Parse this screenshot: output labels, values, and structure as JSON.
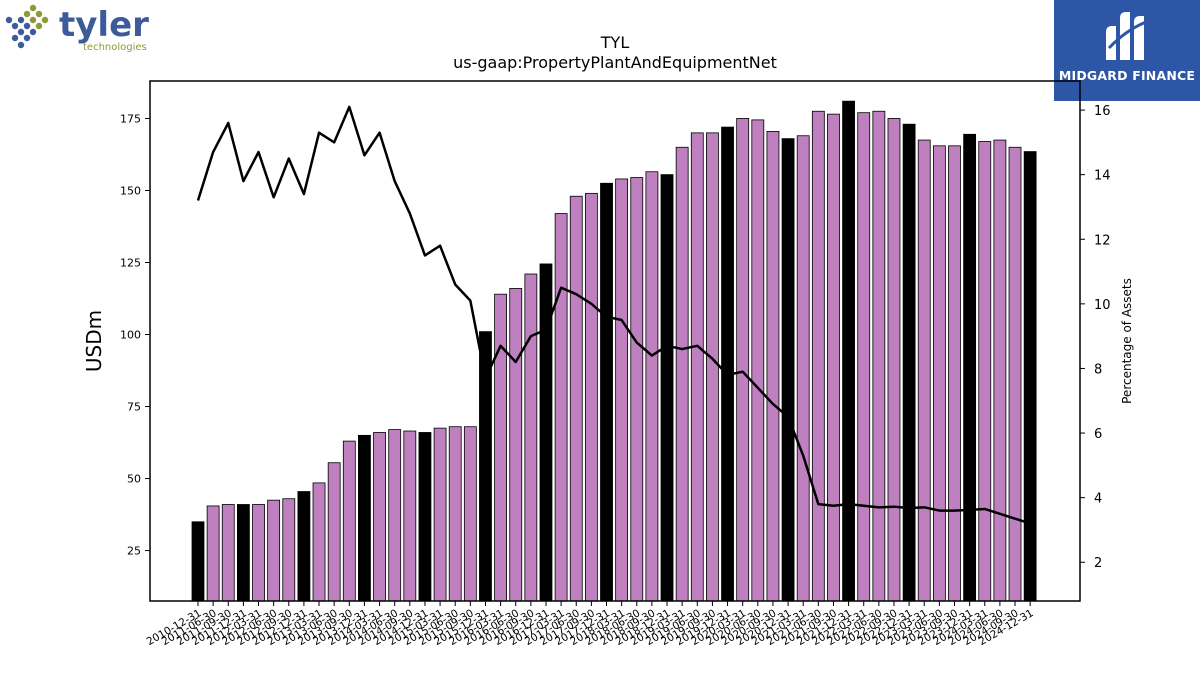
{
  "logos": {
    "left_brand": "tyler",
    "left_tagline": "technologies",
    "right_brand": "MIDGARD FINANCE"
  },
  "colors": {
    "bar_normal": "#bf80bf",
    "bar_highlight": "#000000",
    "line": "#000000",
    "right_logo_bg": "#2d57a6",
    "tyler_blue": "#3d5a99",
    "tyler_olive": "#8e9a3a"
  },
  "chart_data": {
    "type": "bar",
    "title": "TYL",
    "subtitle": "us-gaap:PropertyPlantAndEquipmentNet",
    "ylabel": "USDm",
    "y2label": "Percentage of Assets",
    "ylim": [
      7.5,
      188
    ],
    "y2lim": [
      0.8,
      16.9
    ],
    "yticks": [
      25,
      50,
      75,
      100,
      125,
      150,
      175
    ],
    "y2ticks": [
      2,
      4,
      6,
      8,
      10,
      12,
      14,
      16
    ],
    "categories": [
      "2010-12-31",
      "2011-06-30",
      "2011-09-30",
      "2011-12-31",
      "2012-03-31",
      "2012-06-30",
      "2012-09-30",
      "2012-12-31",
      "2013-03-31",
      "2013-06-30",
      "2013-09-30",
      "2013-12-31",
      "2014-03-31",
      "2014-06-30",
      "2014-09-30",
      "2014-12-31",
      "2015-03-31",
      "2015-06-30",
      "2015-09-30",
      "2015-12-31",
      "2016-03-31",
      "2016-06-30",
      "2016-09-30",
      "2016-12-31",
      "2017-03-31",
      "2017-06-30",
      "2017-09-30",
      "2017-12-31",
      "2018-03-31",
      "2018-06-30",
      "2018-09-30",
      "2018-12-31",
      "2019-03-31",
      "2019-06-30",
      "2019-09-30",
      "2019-12-31",
      "2020-03-31",
      "2020-06-30",
      "2020-09-30",
      "2020-12-31",
      "2021-03-31",
      "2021-06-30",
      "2021-09-30",
      "2021-12-31",
      "2022-03-31",
      "2022-06-30",
      "2022-09-30",
      "2022-12-31",
      "2023-03-31",
      "2023-06-30",
      "2023-09-30",
      "2023-12-31",
      "2024-03-31",
      "2024-06-30",
      "2024-09-30",
      "2024-12-31"
    ],
    "series": [
      {
        "values": [
          35,
          40.5,
          41,
          41,
          41,
          42.5,
          43,
          45.5,
          48.5,
          55.5,
          63,
          65,
          66,
          67,
          66.5,
          66,
          67.5,
          68,
          68,
          101,
          114,
          116,
          121,
          124.5,
          142,
          148,
          149,
          152.5,
          154,
          154.5,
          156.5,
          155.5,
          165,
          170,
          170,
          172,
          175,
          174.5,
          170.5,
          168,
          169,
          177.5,
          176.5,
          181,
          177,
          177.5,
          175,
          173,
          167.5,
          165.5,
          165.5,
          169.5,
          167,
          167.5,
          165,
          163.5
        ],
        "highlight": [
          true,
          false,
          false,
          true,
          false,
          false,
          false,
          true,
          false,
          false,
          false,
          true,
          false,
          false,
          false,
          true,
          false,
          false,
          false,
          true,
          false,
          false,
          false,
          true,
          false,
          false,
          false,
          true,
          false,
          false,
          false,
          true,
          false,
          false,
          false,
          true,
          false,
          false,
          false,
          true,
          false,
          false,
          false,
          true,
          false,
          false,
          false,
          true,
          false,
          false,
          false,
          true,
          false,
          false,
          false,
          true
        ]
      },
      {
        "axis": "right",
        "values": [
          13.2,
          14.7,
          15.6,
          13.8,
          14.7,
          13.3,
          14.5,
          13.4,
          15.3,
          15,
          16.1,
          14.6,
          15.3,
          13.8,
          12.8,
          11.5,
          11.8,
          10.6,
          10.1,
          7.7,
          8.7,
          8.2,
          9,
          9.2,
          10.5,
          10.3,
          10,
          9.6,
          9.5,
          8.8,
          8.4,
          8.7,
          8.6,
          8.7,
          8.3,
          7.8,
          7.9,
          7.4,
          6.9,
          6.5,
          5.3,
          3.8,
          3.75,
          3.8,
          3.75,
          3.7,
          3.72,
          3.68,
          3.7,
          3.6,
          3.6,
          3.62,
          3.65,
          3.5,
          3.35,
          3.2
        ]
      }
    ]
  }
}
